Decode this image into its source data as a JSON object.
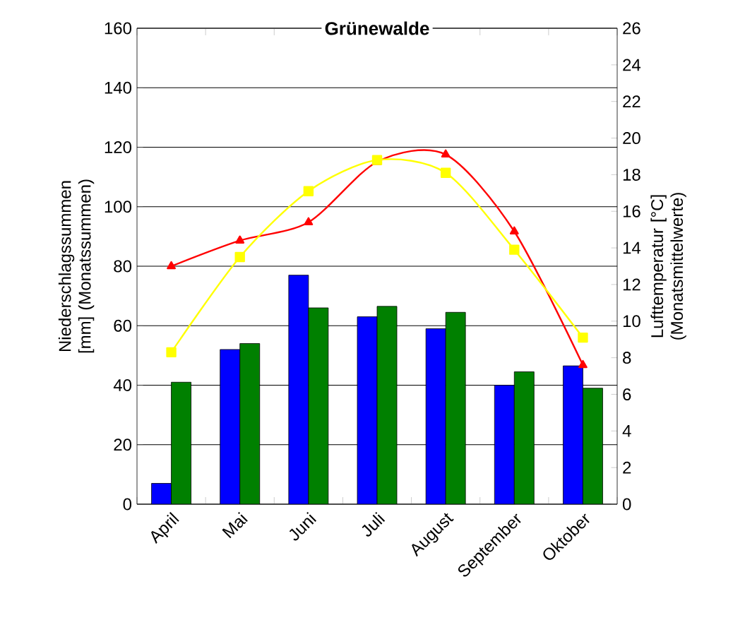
{
  "chart_data": {
    "type": "bar",
    "title": "Grünewalde",
    "ylabel": "Niederschlagssummen [mm] (Monatssummen)",
    "y2label": "Lufttemperatur [°C] (Monatsmittelwerte)",
    "categories": [
      "April",
      "Mai",
      "Juni",
      "Juli",
      "August",
      "September",
      "Oktober"
    ],
    "series": [
      {
        "color": "#0000ff",
        "values": [
          7,
          52,
          77,
          63,
          59,
          40,
          46.5
        ]
      },
      {
        "color": "#008000",
        "values": [
          41,
          54,
          66,
          66.5,
          64.5,
          44.5,
          39
        ]
      },
      {
        "type": "line",
        "axis": "y2",
        "marker": "triangle",
        "color": "#ff0000",
        "values": [
          13.0,
          14.4,
          15.4,
          18.7,
          19.1,
          14.9,
          7.6
        ]
      },
      {
        "type": "line",
        "axis": "y2",
        "marker": "square",
        "color": "#ffff00",
        "values": [
          8.3,
          13.5,
          17.1,
          18.8,
          18.1,
          13.9,
          9.1
        ]
      }
    ],
    "ylim": [
      0,
      160
    ],
    "yticks": [
      0,
      20,
      40,
      60,
      80,
      100,
      120,
      140,
      160
    ],
    "y2lim": [
      0,
      26
    ],
    "y2ticks": [
      0,
      2,
      4,
      6,
      8,
      10,
      12,
      14,
      16,
      18,
      20,
      22,
      24,
      26
    ],
    "grid": "y"
  }
}
